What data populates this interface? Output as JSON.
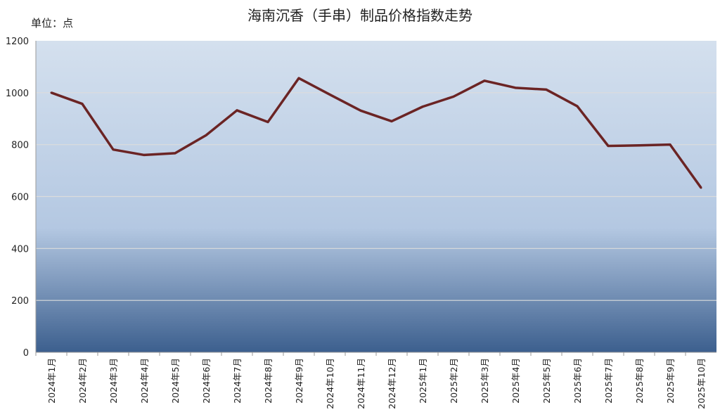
{
  "chart_data": {
    "type": "line",
    "title": "海南沉香（手串）制品价格指数走势",
    "unit_label": "单位：点",
    "xlabel": "",
    "ylabel": "",
    "ylim": [
      0,
      1200
    ],
    "yticks": [
      "0",
      "200",
      "400",
      "600",
      "800",
      "1000",
      "1200"
    ],
    "grid": true,
    "categories": [
      "2024年1月",
      "2024年2月",
      "2024年3月",
      "2024年4月",
      "2024年5月",
      "2024年6月",
      "2024年7月",
      "2024年8月",
      "2024年9月",
      "2024年10月",
      "2024年11月",
      "2024年12月",
      "2025年1月",
      "2025年2月",
      "2025年3月",
      "2025年4月",
      "2025年5月",
      "2025年6月",
      "2025年7月",
      "2025年8月",
      "2025年9月",
      "2025年10月"
    ],
    "series": [
      {
        "values": [
          1000,
          957,
          781,
          760,
          767,
          836,
          932,
          887,
          1056,
          993,
          931,
          890,
          946,
          985,
          1046,
          1019,
          1012,
          948,
          795,
          797,
          800,
          634
        ]
      }
    ],
    "colors": {
      "line": "#6b2424",
      "bg_top": "#d4e0ee",
      "bg_mid": "#b4c8e2",
      "bg_bottom": "#3c5f8e"
    }
  }
}
